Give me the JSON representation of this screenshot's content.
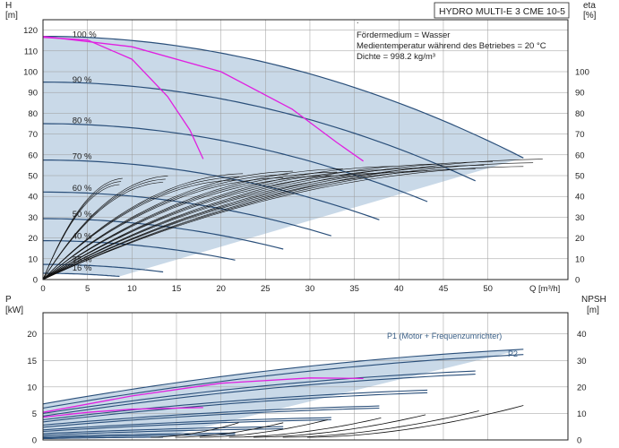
{
  "chart_data": [
    {
      "type": "line",
      "title": "HYDRO MULTI-E 3 CME 10-5",
      "notes": [
        "Fördermedium = Wasser",
        "Medientemperatur während des Betriebes = 20 °C",
        "Dichte = 998.2 kg/m³"
      ],
      "xlabel": "Q [m³/h]",
      "xlim": [
        0,
        59
      ],
      "xticks": [
        0,
        5,
        10,
        15,
        20,
        25,
        30,
        35,
        40,
        45,
        50
      ],
      "ylabel": "H",
      "yunit": "[m]",
      "ylim": [
        0,
        125
      ],
      "yticks": [
        0,
        10,
        20,
        30,
        40,
        50,
        60,
        70,
        80,
        90,
        100,
        110,
        120
      ],
      "y2label": "eta",
      "y2unit": "[%]",
      "y2lim": [
        0,
        125
      ],
      "y2ticks": [
        0,
        10,
        20,
        30,
        40,
        50,
        60,
        70,
        80,
        90,
        100
      ],
      "grid": true,
      "speed_curves": [
        {
          "name": "100 %",
          "shutoff": 117,
          "qmax": 54
        },
        {
          "name": "90 %",
          "shutoff": 95,
          "qmax": 48.6
        },
        {
          "name": "80 %",
          "shutoff": 75,
          "qmax": 43.2
        },
        {
          "name": "70 %",
          "shutoff": 57.5,
          "qmax": 37.8
        },
        {
          "name": "60 %",
          "shutoff": 42.1,
          "qmax": 32.4
        },
        {
          "name": "50 %",
          "shutoff": 29.3,
          "qmax": 27
        },
        {
          "name": "40 %",
          "shutoff": 18.7,
          "qmax": 21.6
        },
        {
          "name": "25 %",
          "shutoff": 7.3,
          "qmax": 13.5
        },
        {
          "name": "16 %",
          "shutoff": 3.0,
          "qmax": 8.6
        }
      ],
      "eta_max": 58.5,
      "operating_lines": [
        {
          "color": "#e020e0",
          "points": [
            [
              0,
              116.5
            ],
            [
              5,
              115.2
            ],
            [
              10,
              106
            ],
            [
              14,
              88
            ],
            [
              16.5,
              72
            ],
            [
              18,
              58
            ]
          ]
        },
        {
          "color": "#e020e0",
          "points": [
            [
              0,
              117
            ],
            [
              10,
              112
            ],
            [
              20,
              100
            ],
            [
              28,
              82
            ],
            [
              33,
              66
            ],
            [
              36,
              57
            ]
          ]
        }
      ]
    },
    {
      "type": "line",
      "xlim": [
        0,
        59
      ],
      "ylabel": "P",
      "yunit": "[kW]",
      "ylim": [
        0,
        24
      ],
      "yticks": [
        0,
        5,
        10,
        15,
        20
      ],
      "y2label": "NPSH",
      "y2unit": "[m]",
      "y2lim": [
        0,
        48
      ],
      "y2ticks": [
        0,
        10,
        20,
        30,
        40
      ],
      "grid": true,
      "annotations": [
        "P1 (Motor + Frequenzumrichter)",
        "P2"
      ],
      "power_curves": [
        {
          "p0": 6.8,
          "pmax": 17.1,
          "qmax": 54
        },
        {
          "p0": 6.0,
          "pmax": 16.1,
          "qmax": 54
        },
        {
          "p0": 5.0,
          "pmax": 13.0,
          "qmax": 48.6
        },
        {
          "p0": 4.5,
          "pmax": 12.4,
          "qmax": 48.6
        },
        {
          "p0": 3.8,
          "pmax": 9.4,
          "qmax": 43.2
        },
        {
          "p0": 3.4,
          "pmax": 8.9,
          "qmax": 43.2
        },
        {
          "p0": 2.8,
          "pmax": 6.4,
          "qmax": 37.8
        },
        {
          "p0": 2.4,
          "pmax": 6.0,
          "qmax": 37.8
        },
        {
          "p0": 1.9,
          "pmax": 4.2,
          "qmax": 32.4
        },
        {
          "p0": 1.6,
          "pmax": 3.8,
          "qmax": 32.4
        },
        {
          "p0": 1.2,
          "pmax": 2.5,
          "qmax": 27
        },
        {
          "p0": 0.9,
          "pmax": 2.1,
          "qmax": 27
        },
        {
          "p0": 0.6,
          "pmax": 1.3,
          "qmax": 21.6
        },
        {
          "p0": 0.4,
          "pmax": 1.0,
          "qmax": 21.6
        },
        {
          "p0": 0.25,
          "pmax": 0.5,
          "qmax": 13.5
        }
      ],
      "power_operating_lines": [
        {
          "color": "#e020e0",
          "points": [
            [
              0,
              4.3
            ],
            [
              5,
              5.2
            ],
            [
              10,
              5.8
            ],
            [
              15,
              6.0
            ],
            [
              18,
              6.1
            ]
          ]
        },
        {
          "color": "#e020e0",
          "points": [
            [
              0,
              5.2
            ],
            [
              10,
              8.3
            ],
            [
              20,
              10.7
            ],
            [
              30,
              11.7
            ],
            [
              36,
              11.6
            ]
          ]
        }
      ],
      "npsh_curves": [
        {
          "qmax": 54,
          "nmax": 13
        },
        {
          "qmax": 49,
          "nmax": 11
        },
        {
          "qmax": 43,
          "nmax": 9.5
        },
        {
          "qmax": 38,
          "nmax": 8.3
        },
        {
          "qmax": 32,
          "nmax": 7.6
        },
        {
          "qmax": 27,
          "nmax": 6.5
        },
        {
          "qmax": 22,
          "nmax": 6.5
        }
      ]
    }
  ]
}
